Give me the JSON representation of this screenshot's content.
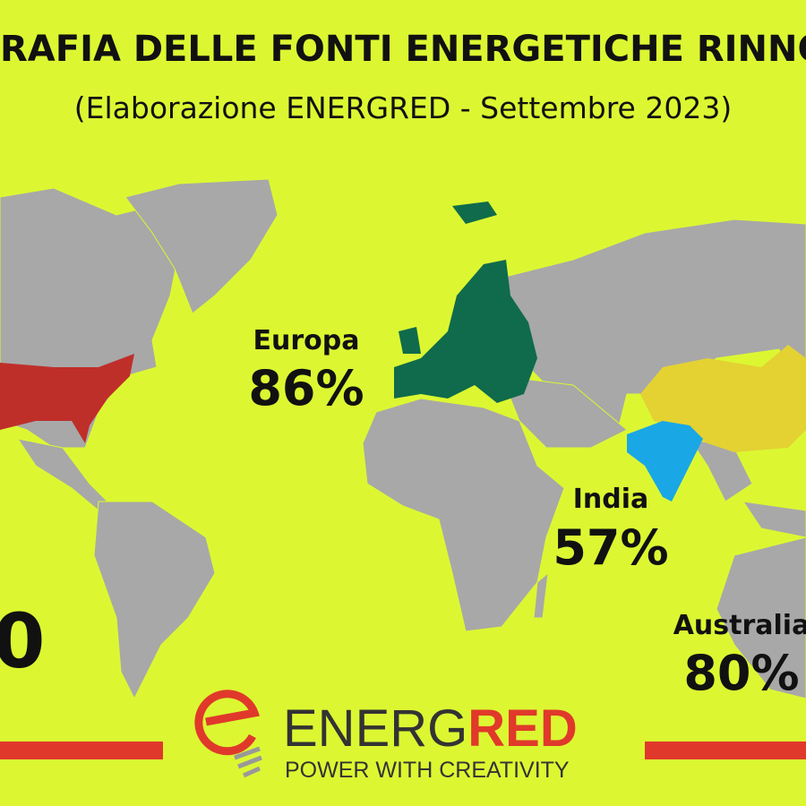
{
  "header": {
    "title": "RAFIA DELLE FONTI ENERGETICHE RINNO",
    "subtitle": "(Elaborazione ENERGRED - Settembre 2023)"
  },
  "regions": [
    {
      "name": "Europa",
      "share": "86%"
    },
    {
      "name": "India",
      "share": "57%"
    },
    {
      "name": "Australia",
      "share": "80%"
    }
  ],
  "edge_label": "0",
  "logo": {
    "brand_first": "ENERG",
    "brand_second": "RED",
    "tagline": "POWER WITH CREATIVITY"
  }
}
